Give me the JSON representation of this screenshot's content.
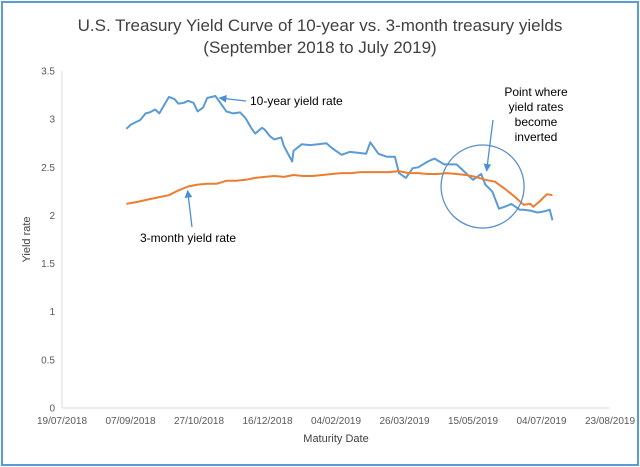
{
  "chart_data": {
    "type": "line",
    "title": "U.S. Treasury Yield Curve of 10-year vs. 3-month treasury yields",
    "subtitle": "(September 2018 to July 2019)",
    "xlabel": "Maturity Date",
    "ylabel": "Yield rate",
    "ylim": [
      0,
      3.5
    ],
    "xlim": [
      "2018-07-19",
      "2019-08-23"
    ],
    "x_ticks": [
      "19/07/2018",
      "07/09/2018",
      "27/10/2018",
      "16/12/2018",
      "04/02/2019",
      "26/03/2019",
      "15/05/2019",
      "04/07/2019",
      "23/08/2019"
    ],
    "y_ticks": [
      "0",
      "0.5",
      "1",
      "1.5",
      "2",
      "2.5",
      "3",
      "3.5"
    ],
    "grid": false,
    "legend": "none",
    "series": [
      {
        "name": "10-year yield rate",
        "color": "#5b9bd5",
        "points": [
          [
            "2018-09-04",
            2.9
          ],
          [
            "2018-09-07",
            2.94
          ],
          [
            "2018-09-11",
            2.97
          ],
          [
            "2018-09-14",
            2.99
          ],
          [
            "2018-09-18",
            3.06
          ],
          [
            "2018-09-21",
            3.07
          ],
          [
            "2018-09-25",
            3.1
          ],
          [
            "2018-09-28",
            3.06
          ],
          [
            "2018-10-03",
            3.18
          ],
          [
            "2018-10-05",
            3.23
          ],
          [
            "2018-10-09",
            3.21
          ],
          [
            "2018-10-12",
            3.16
          ],
          [
            "2018-10-16",
            3.17
          ],
          [
            "2018-10-19",
            3.19
          ],
          [
            "2018-10-23",
            3.17
          ],
          [
            "2018-10-26",
            3.08
          ],
          [
            "2018-10-30",
            3.12
          ],
          [
            "2018-11-02",
            3.22
          ],
          [
            "2018-11-08",
            3.24
          ],
          [
            "2018-11-13",
            3.14
          ],
          [
            "2018-11-16",
            3.08
          ],
          [
            "2018-11-21",
            3.06
          ],
          [
            "2018-11-26",
            3.07
          ],
          [
            "2018-11-30",
            3.01
          ],
          [
            "2018-12-04",
            2.91
          ],
          [
            "2018-12-07",
            2.85
          ],
          [
            "2018-12-12",
            2.91
          ],
          [
            "2018-12-14",
            2.89
          ],
          [
            "2018-12-18",
            2.82
          ],
          [
            "2018-12-21",
            2.79
          ],
          [
            "2018-12-26",
            2.81
          ],
          [
            "2018-12-28",
            2.72
          ],
          [
            "2019-01-03",
            2.56
          ],
          [
            "2019-01-04",
            2.67
          ],
          [
            "2019-01-10",
            2.74
          ],
          [
            "2019-01-16",
            2.73
          ],
          [
            "2019-01-22",
            2.74
          ],
          [
            "2019-01-28",
            2.75
          ],
          [
            "2019-02-01",
            2.7
          ],
          [
            "2019-02-08",
            2.63
          ],
          [
            "2019-02-14",
            2.66
          ],
          [
            "2019-02-20",
            2.65
          ],
          [
            "2019-02-26",
            2.64
          ],
          [
            "2019-03-01",
            2.76
          ],
          [
            "2019-03-07",
            2.64
          ],
          [
            "2019-03-13",
            2.61
          ],
          [
            "2019-03-19",
            2.61
          ],
          [
            "2019-03-22",
            2.44
          ],
          [
            "2019-03-27",
            2.39
          ],
          [
            "2019-04-01",
            2.49
          ],
          [
            "2019-04-05",
            2.5
          ],
          [
            "2019-04-12",
            2.56
          ],
          [
            "2019-04-17",
            2.59
          ],
          [
            "2019-04-24",
            2.53
          ],
          [
            "2019-04-29",
            2.53
          ],
          [
            "2019-05-03",
            2.53
          ],
          [
            "2019-05-09",
            2.45
          ],
          [
            "2019-05-15",
            2.37
          ],
          [
            "2019-05-21",
            2.43
          ],
          [
            "2019-05-24",
            2.32
          ],
          [
            "2019-05-29",
            2.25
          ],
          [
            "2019-06-03",
            2.07
          ],
          [
            "2019-06-07",
            2.09
          ],
          [
            "2019-06-12",
            2.12
          ],
          [
            "2019-06-18",
            2.06
          ],
          [
            "2019-06-21",
            2.06
          ],
          [
            "2019-06-26",
            2.05
          ],
          [
            "2019-07-01",
            2.03
          ],
          [
            "2019-07-05",
            2.04
          ],
          [
            "2019-07-08",
            2.05
          ],
          [
            "2019-07-10",
            2.06
          ],
          [
            "2019-07-12",
            1.95
          ]
        ]
      },
      {
        "name": "3-month yield rate",
        "color": "#ed7d31",
        "points": [
          [
            "2018-09-04",
            2.12
          ],
          [
            "2018-09-12",
            2.14
          ],
          [
            "2018-09-21",
            2.17
          ],
          [
            "2018-09-28",
            2.19
          ],
          [
            "2018-10-05",
            2.21
          ],
          [
            "2018-10-12",
            2.26
          ],
          [
            "2018-10-19",
            2.3
          ],
          [
            "2018-10-26",
            2.32
          ],
          [
            "2018-11-02",
            2.33
          ],
          [
            "2018-11-09",
            2.33
          ],
          [
            "2018-11-16",
            2.36
          ],
          [
            "2018-11-23",
            2.36
          ],
          [
            "2018-11-30",
            2.37
          ],
          [
            "2018-12-07",
            2.39
          ],
          [
            "2018-12-14",
            2.4
          ],
          [
            "2018-12-21",
            2.41
          ],
          [
            "2018-12-28",
            2.4
          ],
          [
            "2019-01-04",
            2.42
          ],
          [
            "2019-01-11",
            2.41
          ],
          [
            "2019-01-18",
            2.41
          ],
          [
            "2019-01-25",
            2.42
          ],
          [
            "2019-02-01",
            2.43
          ],
          [
            "2019-02-08",
            2.44
          ],
          [
            "2019-02-15",
            2.44
          ],
          [
            "2019-02-22",
            2.45
          ],
          [
            "2019-03-01",
            2.45
          ],
          [
            "2019-03-08",
            2.45
          ],
          [
            "2019-03-15",
            2.45
          ],
          [
            "2019-03-22",
            2.46
          ],
          [
            "2019-03-29",
            2.44
          ],
          [
            "2019-04-05",
            2.44
          ],
          [
            "2019-04-12",
            2.43
          ],
          [
            "2019-04-19",
            2.43
          ],
          [
            "2019-04-26",
            2.44
          ],
          [
            "2019-05-03",
            2.43
          ],
          [
            "2019-05-10",
            2.42
          ],
          [
            "2019-05-17",
            2.4
          ],
          [
            "2019-05-24",
            2.37
          ],
          [
            "2019-05-31",
            2.35
          ],
          [
            "2019-06-07",
            2.28
          ],
          [
            "2019-06-14",
            2.2
          ],
          [
            "2019-06-21",
            2.11
          ],
          [
            "2019-06-26",
            2.12
          ],
          [
            "2019-06-28",
            2.09
          ],
          [
            "2019-07-03",
            2.15
          ],
          [
            "2019-07-05",
            2.18
          ],
          [
            "2019-07-08",
            2.22
          ],
          [
            "2019-07-12",
            2.21
          ]
        ]
      }
    ],
    "annotations": [
      {
        "text": "10-year yield rate",
        "points_to": [
          "2018-11-08",
          3.22
        ]
      },
      {
        "text": "3-month yield rate",
        "points_to": [
          "2018-10-26",
          2.32
        ]
      },
      {
        "text": "Point where yield rates become inverted",
        "lines": [
          "Point where",
          "yield rates",
          "become",
          "inverted"
        ],
        "points_to": [
          "2019-05-22",
          2.42
        ]
      }
    ],
    "circle_highlight": {
      "center": [
        "2019-05-22",
        2.3
      ],
      "radius_days": 23
    }
  }
}
